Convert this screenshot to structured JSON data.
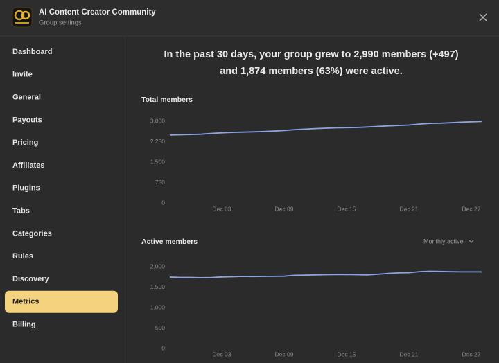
{
  "header": {
    "title": "AI Content Creator Community",
    "subtitle": "Group settings"
  },
  "sidebar": {
    "items": [
      "Dashboard",
      "Invite",
      "General",
      "Payouts",
      "Pricing",
      "Affiliates",
      "Plugins",
      "Tabs",
      "Categories",
      "Rules",
      "Discovery",
      "Metrics",
      "Billing"
    ],
    "selected": 11
  },
  "summary": {
    "lines": [
      "In the past 30 days, your group grew to 2,990 members (+497)",
      "and 1,874 members (63%) were active."
    ]
  },
  "dropdown": {
    "label": "Monthly active"
  },
  "chart_data": [
    {
      "type": "line",
      "title": "Total members",
      "categories": [
        null,
        null,
        null,
        null,
        null,
        "Dec 03",
        null,
        null,
        null,
        null,
        null,
        "Dec 09",
        null,
        null,
        null,
        null,
        null,
        "Dec 15",
        null,
        null,
        null,
        null,
        null,
        "Dec 21",
        null,
        null,
        null,
        null,
        null,
        "Dec 27",
        null
      ],
      "values": [
        2493,
        2505,
        2515,
        2525,
        2555,
        2575,
        2590,
        2600,
        2610,
        2625,
        2640,
        2660,
        2690,
        2710,
        2730,
        2745,
        2758,
        2765,
        2772,
        2790,
        2810,
        2830,
        2845,
        2860,
        2895,
        2920,
        2925,
        2945,
        2965,
        2980,
        2990
      ],
      "color": "#8ea3e2",
      "ylim": [
        0,
        3000
      ],
      "yticks": [
        0,
        750,
        {
          "value": 1500,
          "label": "1.500"
        },
        {
          "value": 2250,
          "label": "2.250"
        },
        {
          "value": 3000,
          "label": "3.000"
        }
      ],
      "grid": false
    },
    {
      "type": "line",
      "title": "Active members",
      "categories": [
        null,
        null,
        null,
        null,
        null,
        "Dec 03",
        null,
        null,
        null,
        null,
        null,
        "Dec 09",
        null,
        null,
        null,
        null,
        null,
        "Dec 15",
        null,
        null,
        null,
        null,
        null,
        "Dec 21",
        null,
        null,
        null,
        null,
        null,
        "Dec 27",
        null
      ],
      "values": [
        1745,
        1738,
        1738,
        1730,
        1735,
        1750,
        1755,
        1762,
        1760,
        1762,
        1765,
        1768,
        1790,
        1795,
        1800,
        1805,
        1808,
        1810,
        1805,
        1800,
        1815,
        1835,
        1850,
        1855,
        1880,
        1890,
        1885,
        1878,
        1875,
        1875,
        1874
      ],
      "color": "#8ea3e2",
      "ylim": [
        0,
        2000
      ],
      "yticks": [
        0,
        500,
        {
          "value": 1000,
          "label": "1.000"
        },
        {
          "value": 1500,
          "label": "1.500"
        },
        {
          "value": 2000,
          "label": "2.000"
        }
      ],
      "grid": false
    }
  ]
}
